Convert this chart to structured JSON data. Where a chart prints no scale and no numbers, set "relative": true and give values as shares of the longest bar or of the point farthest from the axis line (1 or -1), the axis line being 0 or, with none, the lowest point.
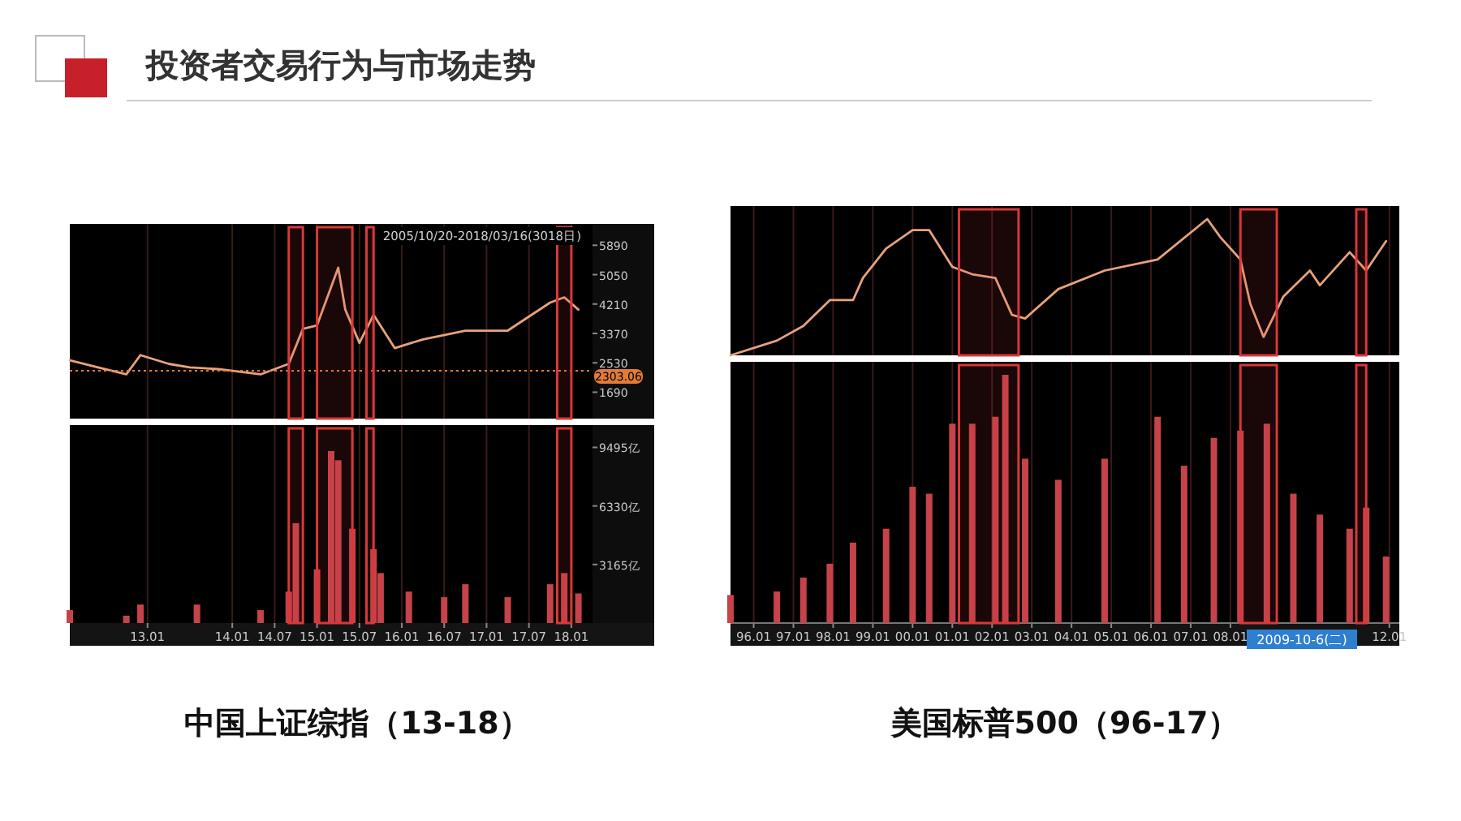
{
  "chart_data": [
    {
      "type": "line",
      "annotations": [
        "投资者交易行为与市场走势",
        "2005/10/20-2018/03/16(3018日)"
      ],
      "x": [
        "2012-02",
        "2012-06",
        "2012-10",
        "2012-12",
        "2013-04",
        "2013-07",
        "2013-11",
        "2014-05",
        "2014-09",
        "2014-11",
        "2015-01",
        "2015-04",
        "2015-05",
        "2015-07",
        "2015-09",
        "2015-12",
        "2016-04",
        "2016-10",
        "2017-04",
        "2017-10",
        "2017-12",
        "2018-02"
      ],
      "series": [
        {
          "color": "#e8a27c",
          "values": [
            2600,
            2400,
            2200,
            2750,
            2500,
            2400,
            2350,
            2200,
            2500,
            3500,
            3600,
            5250,
            4050,
            3100,
            3900,
            2950,
            3200,
            3450,
            3450,
            4250,
            4400,
            4050
          ]
        }
      ],
      "xlim": [
        "2012-02",
        "2018-04"
      ],
      "xticks": [
        {
          "value": "2013-01",
          "label": null
        },
        {
          "value": "2014-01",
          "label": null
        },
        {
          "value": "2014-07",
          "label": null
        },
        {
          "value": "2015-01",
          "label": null
        },
        {
          "value": "2015-07",
          "label": null
        },
        {
          "value": "2016-01",
          "label": null
        },
        {
          "value": "2016-07",
          "label": null
        },
        {
          "value": "2017-01",
          "label": null
        },
        {
          "value": "2017-07",
          "label": null
        },
        {
          "value": "2018-01",
          "label": null
        }
      ],
      "ylim": [
        935,
        6500
      ],
      "yticks": [
        1690,
        2530,
        3370,
        4210,
        5050,
        5890
      ],
      "tick_labels": "y",
      "grid": "x",
      "ref_lines": [
        {
          "axis": "y",
          "value": 2303.06,
          "label": "2303.06",
          "color": "#e07b39",
          "line_style": "dotted"
        }
      ],
      "bands": [
        {
          "axis": "x",
          "from": "2014-09",
          "to": "2014-11",
          "color": "#d8383a"
        },
        {
          "axis": "x",
          "from": "2015-01",
          "to": "2015-06",
          "color": "#d8383a"
        },
        {
          "axis": "x",
          "from": "2015-08",
          "to": "2015-09",
          "color": "#d8383a"
        },
        {
          "axis": "x",
          "from": "2017-11",
          "to": "2018-01",
          "color": "#d8383a"
        }
      ]
    },
    {
      "type": "bar",
      "title": "中国上证综指（13-18）",
      "x": [
        "2012-02",
        "2012-10",
        "2012-12",
        "2013-08",
        "2014-05",
        "2014-09",
        "2014-10",
        "2015-01",
        "2015-03",
        "2015-04",
        "2015-06",
        "2015-09",
        "2015-10",
        "2016-02",
        "2016-07",
        "2016-10",
        "2017-04",
        "2017-10",
        "2017-12",
        "2018-02"
      ],
      "series": [
        {
          "color": "#c6434a",
          "values": [
            700,
            400,
            1000,
            1000,
            700,
            1700,
            5400,
            2900,
            9300,
            8800,
            5100,
            4000,
            2700,
            1700,
            1400,
            2100,
            1400,
            2100,
            2700,
            1600
          ]
        }
      ],
      "xlim": [
        "2012-02",
        "2018-04"
      ],
      "xticks": [
        {
          "value": "2013-01",
          "label": "13.01"
        },
        {
          "value": "2014-01",
          "label": "14.01"
        },
        {
          "value": "2014-07",
          "label": "14.07"
        },
        {
          "value": "2015-01",
          "label": "15.01"
        },
        {
          "value": "2015-07",
          "label": "15.07"
        },
        {
          "value": "2016-01",
          "label": "16.01"
        },
        {
          "value": "2016-07",
          "label": "16.07"
        },
        {
          "value": "2017-01",
          "label": "17.01"
        },
        {
          "value": "2017-07",
          "label": "17.07"
        },
        {
          "value": "2018-01",
          "label": "18.01"
        }
      ],
      "ylim": [
        0,
        10700
      ],
      "yticks": [
        {
          "value": 3165,
          "label": "3165亿"
        },
        {
          "value": 6330,
          "label": "6330亿"
        },
        {
          "value": 9495,
          "label": "9495亿"
        }
      ],
      "grid": "x",
      "bands": [
        {
          "axis": "x",
          "from": "2014-09",
          "to": "2014-11",
          "color": "#d8383a"
        },
        {
          "axis": "x",
          "from": "2015-01",
          "to": "2015-06",
          "color": "#d8383a"
        },
        {
          "axis": "x",
          "from": "2015-08",
          "to": "2015-09",
          "color": "#d8383a"
        },
        {
          "axis": "x",
          "from": "2017-11",
          "to": "2018-01",
          "color": "#d8383a"
        }
      ]
    },
    {
      "type": "line",
      "relative": true,
      "x": [
        "1995-06",
        "1996-08",
        "1997-04",
        "1997-12",
        "1998-07",
        "1998-10",
        "1999-05",
        "2000-01",
        "2000-06",
        "2001-01",
        "2001-07",
        "2002-02",
        "2002-07",
        "2002-11",
        "2003-09",
        "2004-11",
        "2006-03",
        "2007-06",
        "2007-10",
        "2008-04",
        "2008-07",
        "2008-11",
        "2009-05",
        "2010-01",
        "2010-04",
        "2011-01",
        "2011-06",
        "2011-12"
      ],
      "series": [
        {
          "color": "#e8a27c",
          "values": [
            0,
            0.108,
            0.216,
            0.405,
            0.405,
            0.568,
            0.784,
            0.919,
            0.919,
            0.649,
            0.595,
            0.568,
            0.297,
            0.27,
            0.486,
            0.622,
            0.703,
            1,
            0.865,
            0.703,
            0.378,
            0.135,
            0.432,
            0.622,
            0.514,
            0.757,
            0.622,
            0.838
          ]
        }
      ],
      "xlim": [
        "1995-06",
        "2012-04"
      ],
      "xticks": [
        {
          "value": "1996-01",
          "label": null
        },
        {
          "value": "1997-01",
          "label": null
        },
        {
          "value": "1998-01",
          "label": null
        },
        {
          "value": "1999-01",
          "label": null
        },
        {
          "value": "2000-01",
          "label": null
        },
        {
          "value": "2001-01",
          "label": null
        },
        {
          "value": "2002-01",
          "label": null
        },
        {
          "value": "2003-01",
          "label": null
        },
        {
          "value": "2004-01",
          "label": null
        },
        {
          "value": "2005-01",
          "label": null
        },
        {
          "value": "2006-01",
          "label": null
        },
        {
          "value": "2007-01",
          "label": null
        },
        {
          "value": "2008-01",
          "label": null
        },
        {
          "value": "2012-01",
          "label": null
        }
      ],
      "tick_labels": false,
      "grid": "x",
      "bands": [
        {
          "axis": "x",
          "from": "2001-03",
          "to": "2002-09",
          "color": "#d8383a"
        },
        {
          "axis": "x",
          "from": "2008-04",
          "to": "2009-03",
          "color": "#d8383a"
        },
        {
          "axis": "x",
          "from": "2011-03",
          "to": "2011-06",
          "color": "#d8383a"
        }
      ]
    },
    {
      "type": "bar",
      "relative": true,
      "title": "美国标普500（96-17）",
      "annotations": [
        "2009-10-6(二)"
      ],
      "x": [
        "1995-06",
        "1996-08",
        "1997-04",
        "1997-12",
        "1998-07",
        "1999-05",
        "2000-01",
        "2000-06",
        "2001-01",
        "2001-07",
        "2002-02",
        "2002-05",
        "2002-11",
        "2003-09",
        "2004-11",
        "2006-03",
        "2006-11",
        "2007-08",
        "2008-04",
        "2008-12",
        "2009-08",
        "2010-04",
        "2011-01",
        "2011-06",
        "2011-12"
      ],
      "series": [
        {
          "color": "#c6434a",
          "values": [
            0.113,
            0.127,
            0.183,
            0.239,
            0.324,
            0.38,
            0.549,
            0.521,
            0.803,
            0.803,
            0.831,
            1,
            0.662,
            0.577,
            0.662,
            0.831,
            0.634,
            0.746,
            0.775,
            0.803,
            0.521,
            0.437,
            0.38,
            0.465,
            0.268
          ]
        }
      ],
      "xlim": [
        "1995-06",
        "2012-04"
      ],
      "xticks": [
        {
          "value": "1996-01",
          "label": "96.01"
        },
        {
          "value": "1997-01",
          "label": "97.01"
        },
        {
          "value": "1998-01",
          "label": "98.01"
        },
        {
          "value": "1999-01",
          "label": "99.01"
        },
        {
          "value": "2000-01",
          "label": "00.01"
        },
        {
          "value": "2001-01",
          "label": "01.01"
        },
        {
          "value": "2002-01",
          "label": "02.01"
        },
        {
          "value": "2003-01",
          "label": "03.01"
        },
        {
          "value": "2004-01",
          "label": "04.01"
        },
        {
          "value": "2005-01",
          "label": "05.01"
        },
        {
          "value": "2006-01",
          "label": "06.01"
        },
        {
          "value": "2007-01",
          "label": "07.01"
        },
        {
          "value": "2008-01",
          "label": "08.01"
        },
        {
          "value": "2012-01",
          "label": "12.01"
        }
      ],
      "tick_labels": "x",
      "grid": "x",
      "bands": [
        {
          "axis": "x",
          "from": "2001-03",
          "to": "2002-09",
          "color": "#d8383a"
        },
        {
          "axis": "x",
          "from": "2008-04",
          "to": "2009-03",
          "color": "#d8383a"
        },
        {
          "axis": "x",
          "from": "2011-03",
          "to": "2011-06",
          "color": "#d8383a"
        }
      ]
    }
  ]
}
